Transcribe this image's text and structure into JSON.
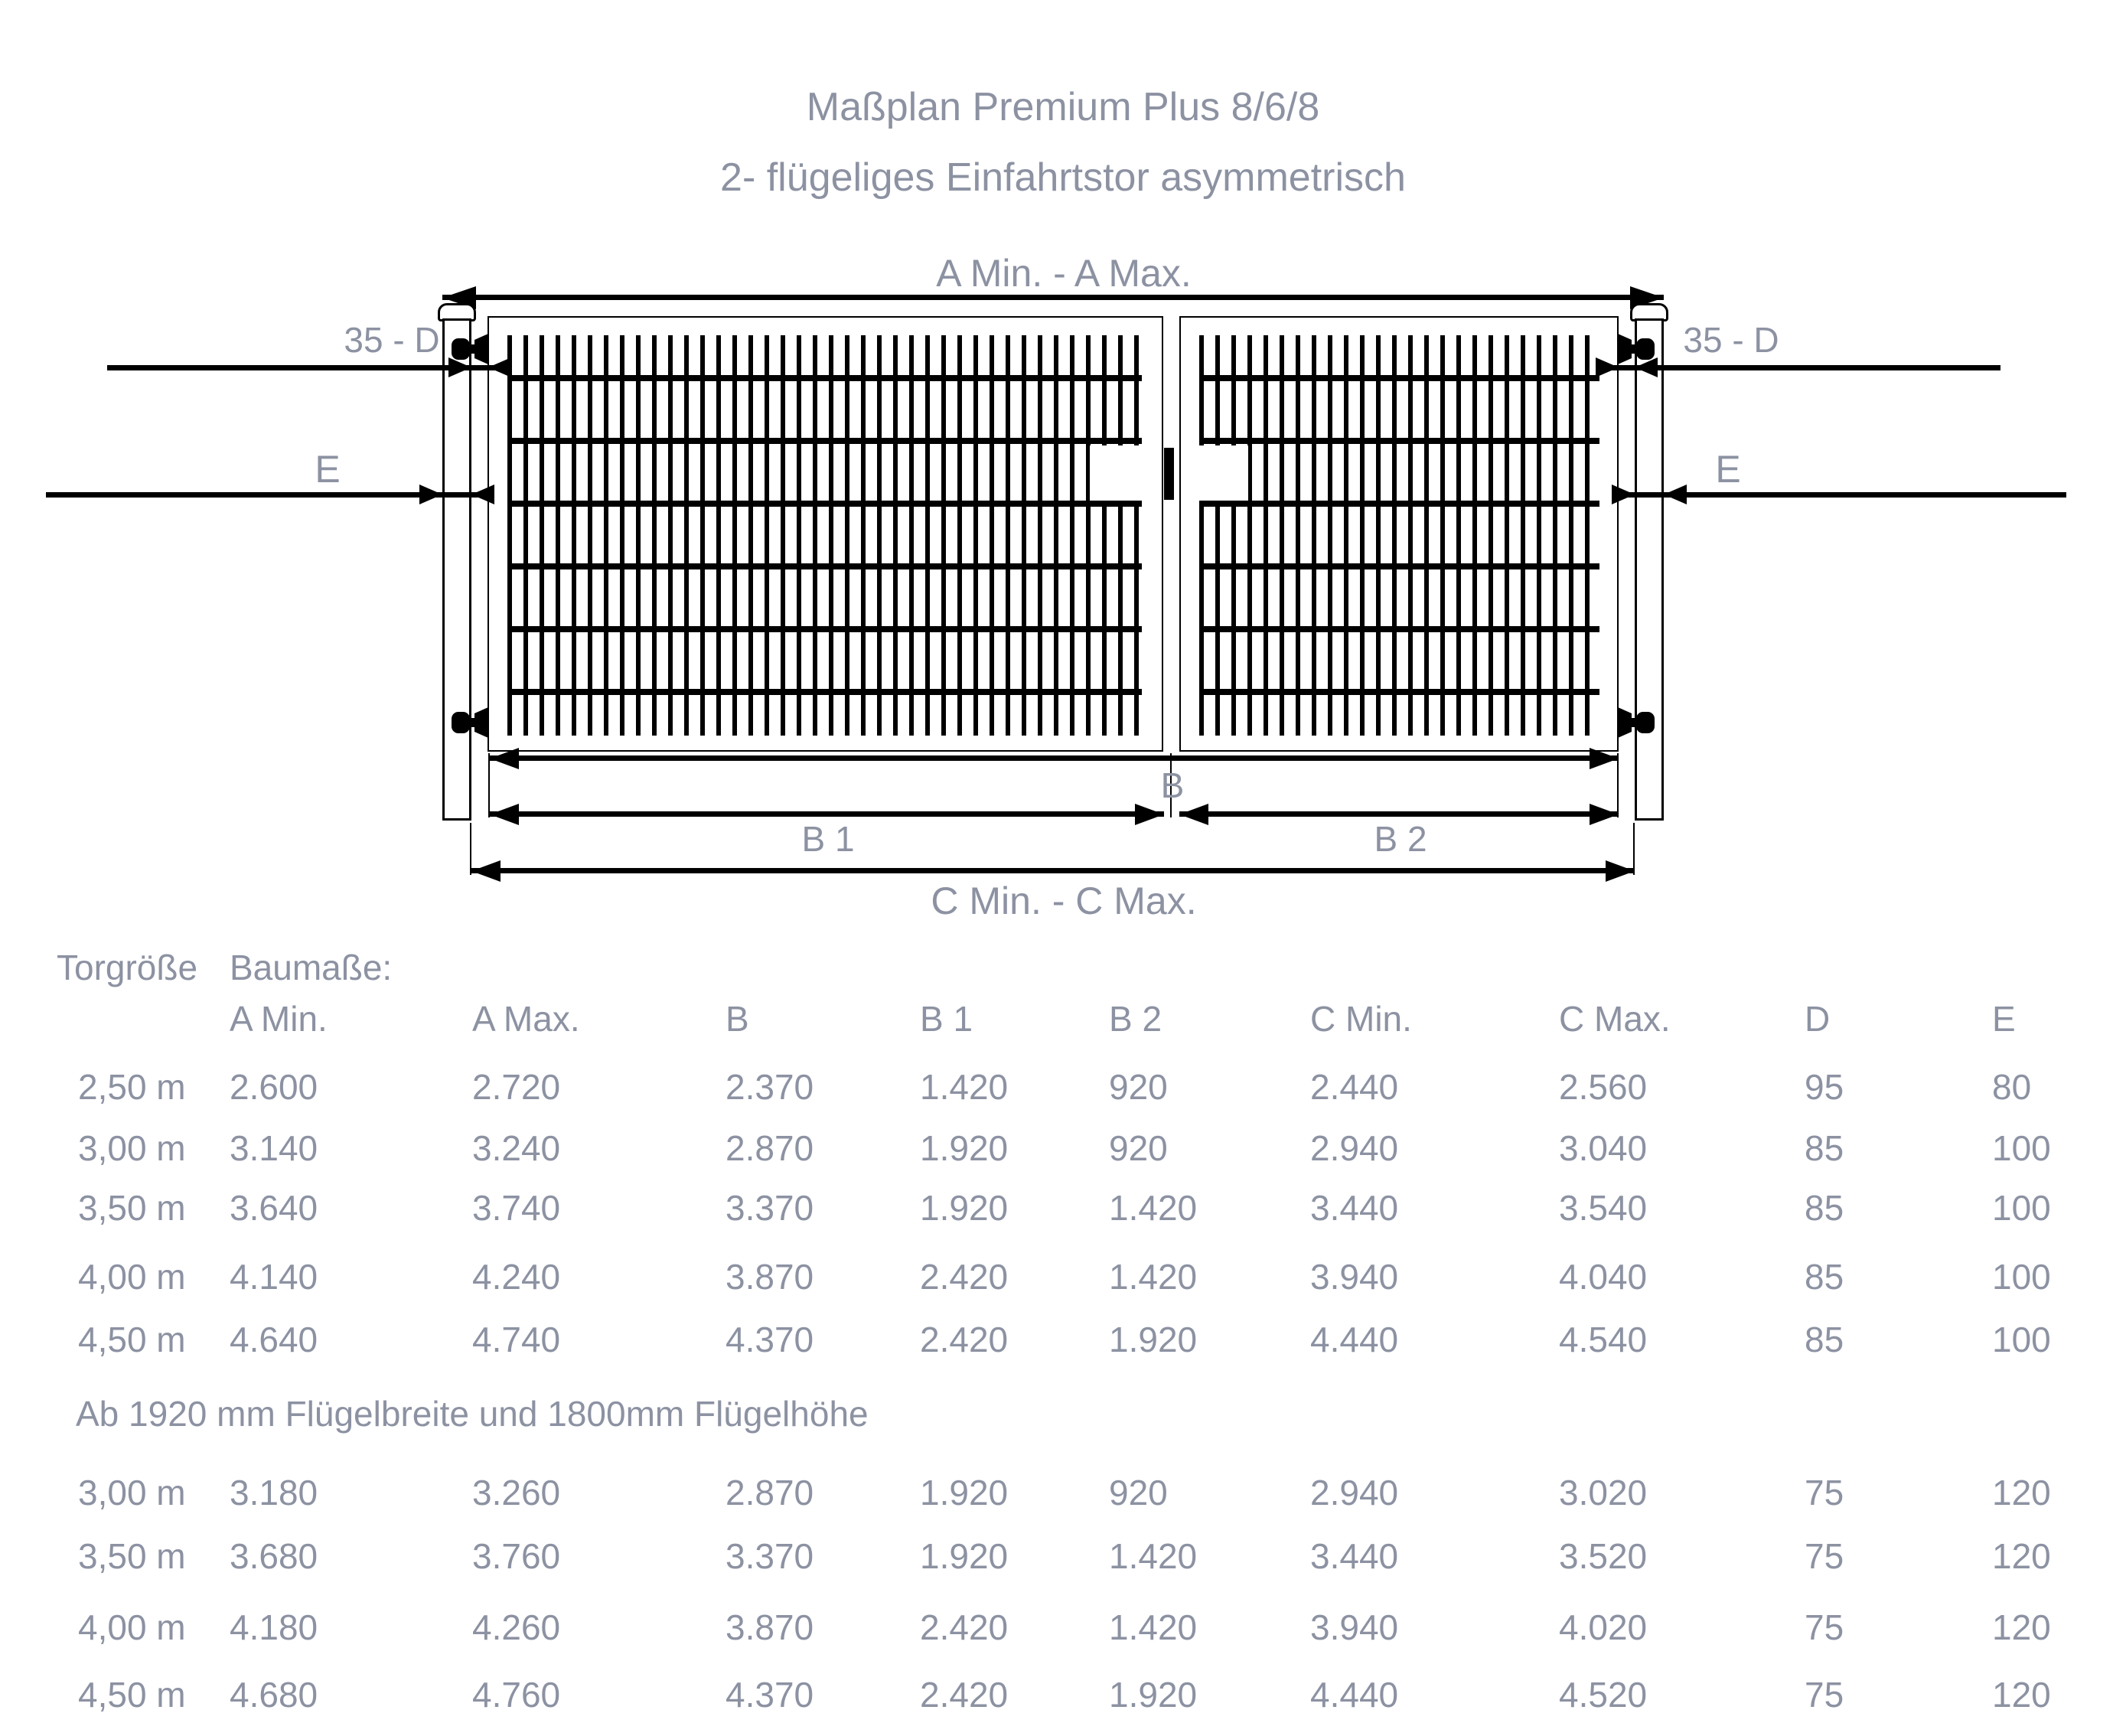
{
  "title": {
    "line1": "Maßplan Premium Plus 8/6/8",
    "line2": "2- flügeliges Einfahrtstor asymmetrisch"
  },
  "diagram": {
    "labels": {
      "a_span": "A Min. - A Max.",
      "gap_35d": "35 - D",
      "post_e": "E",
      "b": "B",
      "b1": "B 1",
      "b2": "B 2",
      "c_span": "C Min. - C Max."
    }
  },
  "table": {
    "row_label_header": "Torgröße",
    "group_header": "Baumaße:",
    "columns": [
      "A Min.",
      "A Max.",
      "B",
      "B 1",
      "B 2",
      "C Min.",
      "C Max.",
      "D",
      "E"
    ],
    "sections": [
      {
        "note": "",
        "rows": [
          {
            "size": "2,50 m",
            "values": [
              "2.600",
              "2.720",
              "2.370",
              "1.420",
              "920",
              "2.440",
              "2.560",
              "95",
              "80"
            ]
          },
          {
            "size": "3,00 m",
            "values": [
              "3.140",
              "3.240",
              "2.870",
              "1.920",
              "920",
              "2.940",
              "3.040",
              "85",
              "100"
            ]
          },
          {
            "size": "3,50 m",
            "values": [
              "3.640",
              "3.740",
              "3.370",
              "1.920",
              "1.420",
              "3.440",
              "3.540",
              "85",
              "100"
            ]
          },
          {
            "size": "4,00 m",
            "values": [
              "4.140",
              "4.240",
              "3.870",
              "2.420",
              "1.420",
              "3.940",
              "4.040",
              "85",
              "100"
            ]
          },
          {
            "size": "4,50 m",
            "values": [
              "4.640",
              "4.740",
              "4.370",
              "2.420",
              "1.920",
              "4.440",
              "4.540",
              "85",
              "100"
            ]
          }
        ]
      },
      {
        "note": "Ab 1920 mm Flügelbreite und 1800mm Flügelhöhe",
        "rows": [
          {
            "size": "3,00 m",
            "values": [
              "3.180",
              "3.260",
              "2.870",
              "1.920",
              "920",
              "2.940",
              "3.020",
              "75",
              "120"
            ]
          },
          {
            "size": "3,50 m",
            "values": [
              "3.680",
              "3.760",
              "3.370",
              "1.920",
              "1.420",
              "3.440",
              "3.520",
              "75",
              "120"
            ]
          },
          {
            "size": "4,00 m",
            "values": [
              "4.180",
              "4.260",
              "3.870",
              "2.420",
              "1.420",
              "3.940",
              "4.020",
              "75",
              "120"
            ]
          },
          {
            "size": "4,50 m",
            "values": [
              "4.680",
              "4.760",
              "4.370",
              "2.420",
              "1.920",
              "4.440",
              "4.520",
              "75",
              "120"
            ]
          }
        ]
      }
    ]
  },
  "colors": {
    "text": "#8c92a2",
    "line": "#000000",
    "background": "#ffffff"
  }
}
